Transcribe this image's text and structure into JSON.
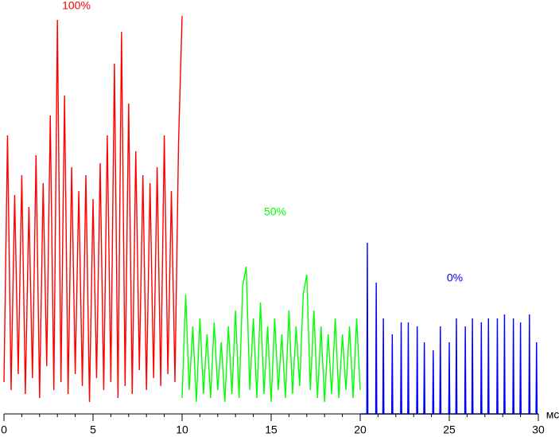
{
  "chart_data": {
    "type": "line",
    "x_unit": "мс",
    "xlim": [
      0,
      30
    ],
    "xticks": [
      0,
      5,
      10,
      15,
      20,
      25,
      30
    ],
    "xminorticks": [
      1,
      2,
      3,
      4,
      6,
      7,
      8,
      9,
      11,
      12,
      13,
      14,
      16,
      17,
      18,
      19,
      21,
      22,
      23,
      24,
      26,
      27,
      28,
      29
    ],
    "ylim": [
      0,
      100
    ],
    "series": [
      {
        "name": "100%",
        "color": "#ff0000",
        "x": [
          0,
          0.2,
          0.4,
          0.6,
          0.8,
          1.0,
          1.2,
          1.4,
          1.6,
          1.8,
          2.0,
          2.2,
          2.4,
          2.6,
          2.8,
          3.0,
          3.2,
          3.4,
          3.6,
          3.8,
          4.0,
          4.2,
          4.4,
          4.6,
          4.8,
          5.0,
          5.2,
          5.4,
          5.6,
          5.8,
          6.0,
          6.2,
          6.4,
          6.6,
          6.8,
          7.0,
          7.2,
          7.4,
          7.6,
          7.8,
          8.0,
          8.2,
          8.4,
          8.6,
          8.8,
          9.0,
          9.2,
          9.4,
          9.6,
          9.8,
          10.0
        ],
        "values": [
          8,
          70,
          6,
          55,
          10,
          60,
          5,
          52,
          9,
          65,
          4,
          58,
          12,
          75,
          6,
          99,
          8,
          80,
          5,
          62,
          10,
          56,
          7,
          60,
          3,
          54,
          9,
          63,
          6,
          70,
          8,
          88,
          4,
          96,
          7,
          78,
          5,
          66,
          11,
          60,
          6,
          58,
          9,
          62,
          7,
          70,
          10,
          56,
          8,
          68,
          100
        ]
      },
      {
        "name": "50%",
        "color": "#00ff00",
        "x": [
          10.0,
          10.2,
          10.4,
          10.6,
          10.8,
          11.0,
          11.2,
          11.4,
          11.6,
          11.8,
          12.0,
          12.2,
          12.4,
          12.6,
          12.8,
          13.0,
          13.2,
          13.4,
          13.6,
          13.8,
          14.0,
          14.2,
          14.4,
          14.6,
          14.8,
          15.0,
          15.2,
          15.4,
          15.6,
          15.8,
          16.0,
          16.2,
          16.4,
          16.6,
          16.8,
          17.0,
          17.2,
          17.4,
          17.6,
          17.8,
          18.0,
          18.2,
          18.4,
          18.6,
          18.8,
          19.0,
          19.2,
          19.4,
          19.6,
          19.8,
          20.0
        ],
        "values": [
          4,
          30,
          6,
          22,
          3,
          24,
          5,
          20,
          4,
          23,
          6,
          18,
          3,
          22,
          5,
          26,
          4,
          32,
          37,
          6,
          24,
          4,
          28,
          5,
          22,
          3,
          24,
          6,
          20,
          4,
          26,
          5,
          22,
          7,
          30,
          35,
          6,
          26,
          4,
          22,
          3,
          20,
          5,
          24,
          4,
          20,
          6,
          22,
          4,
          24,
          6
        ]
      },
      {
        "name": "0%",
        "color": "#0000ff",
        "x": [
          20.0,
          20.37,
          20.4,
          20.43,
          20.87,
          20.9,
          20.93,
          21.27,
          21.3,
          21.33,
          21.77,
          21.8,
          21.83,
          22.27,
          22.3,
          22.33,
          22.67,
          22.7,
          22.73,
          23.17,
          23.2,
          23.23,
          23.57,
          23.6,
          23.63,
          24.07,
          24.1,
          24.13,
          24.47,
          24.5,
          24.53,
          24.97,
          25.0,
          25.03,
          25.37,
          25.4,
          25.43,
          25.87,
          25.9,
          25.93,
          26.27,
          26.3,
          26.33,
          26.77,
          26.8,
          26.83,
          27.17,
          27.2,
          27.23,
          27.67,
          27.7,
          27.73,
          28.07,
          28.1,
          28.13,
          28.57,
          28.6,
          28.63,
          28.97,
          29.0,
          29.03,
          29.47,
          29.5,
          29.53,
          29.87,
          29.9,
          29.93,
          30.0
        ],
        "values": [
          0,
          0,
          43,
          0,
          0,
          33,
          0,
          0,
          24,
          0,
          0,
          20,
          0,
          0,
          23,
          0,
          0,
          23,
          0,
          0,
          22,
          0,
          0,
          18,
          0,
          0,
          16,
          0,
          0,
          22,
          0,
          0,
          18,
          0,
          0,
          24,
          0,
          0,
          22,
          0,
          0,
          24,
          0,
          0,
          23,
          0,
          0,
          24,
          0,
          0,
          24,
          0,
          0,
          25,
          0,
          0,
          24,
          0,
          0,
          23,
          0,
          0,
          25,
          0,
          0,
          18,
          0,
          0
        ]
      }
    ]
  }
}
